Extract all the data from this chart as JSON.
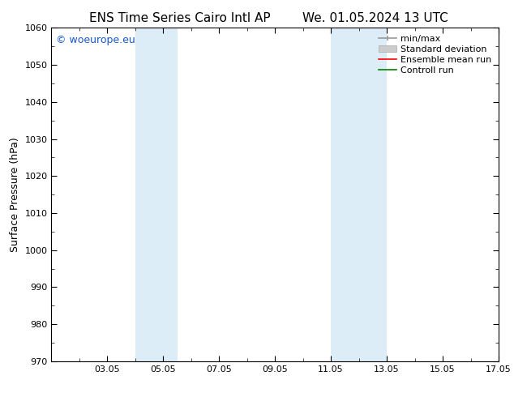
{
  "title_left": "ENS Time Series Cairo Intl AP",
  "title_right": "We. 01.05.2024 13 UTC",
  "ylabel": "Surface Pressure (hPa)",
  "ylim": [
    970,
    1060
  ],
  "yticks": [
    970,
    980,
    990,
    1000,
    1010,
    1020,
    1030,
    1040,
    1050,
    1060
  ],
  "xlim": [
    1.0,
    17.0
  ],
  "xtick_labels": [
    "03.05",
    "05.05",
    "07.05",
    "09.05",
    "11.05",
    "13.05",
    "15.05",
    "17.05"
  ],
  "xtick_positions": [
    3,
    5,
    7,
    9,
    11,
    13,
    15,
    17
  ],
  "shaded_bands": [
    {
      "x_start": 4.0,
      "x_end": 5.5
    },
    {
      "x_start": 11.0,
      "x_end": 13.0
    }
  ],
  "shaded_color": "#ddedf8",
  "watermark_text": "© woeurope.eu",
  "watermark_color": "#1a56cc",
  "legend_items": [
    {
      "label": "min/max",
      "color": "#aaaaaa",
      "lw": 1.2
    },
    {
      "label": "Standard deviation",
      "color": "#cccccc",
      "lw": 6
    },
    {
      "label": "Ensemble mean run",
      "color": "red",
      "lw": 1.2
    },
    {
      "label": "Controll run",
      "color": "green",
      "lw": 1.2
    }
  ],
  "bg_color": "#ffffff",
  "spine_color": "#000000",
  "tick_color": "#000000",
  "font_size_title": 11,
  "font_size_axis": 9,
  "font_size_tick": 8,
  "font_size_legend": 8,
  "font_size_watermark": 9
}
